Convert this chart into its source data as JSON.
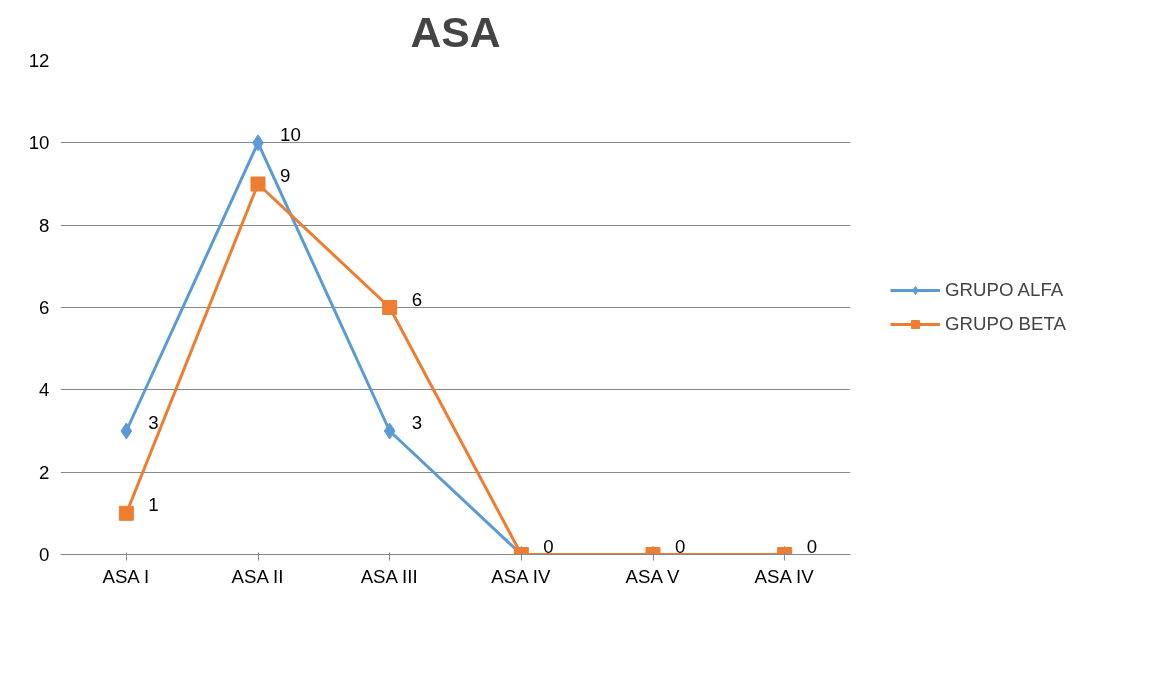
{
  "chart_data": {
    "type": "line",
    "title": "ASA",
    "categories": [
      "ASA I",
      "ASA II",
      "ASA III",
      "ASA IV",
      "ASA V",
      "ASA IV"
    ],
    "series": [
      {
        "name": "GRUPO ALFA",
        "color": "#5b9bd5",
        "marker": "diamond",
        "values": [
          3,
          10,
          3,
          0,
          0,
          0
        ],
        "value_labels": [
          "3",
          "10",
          "3",
          null,
          null,
          null
        ]
      },
      {
        "name": "GRUPO BETA",
        "color": "#ed7d31",
        "marker": "square",
        "values": [
          1,
          9,
          6,
          0,
          0,
          0
        ],
        "value_labels": [
          "1",
          "9",
          "6",
          "0",
          "0",
          "0"
        ]
      }
    ],
    "ylim": [
      0,
      12
    ],
    "yticks": [
      0,
      2,
      4,
      6,
      8,
      10,
      12
    ],
    "grid": "y",
    "legend": "right"
  }
}
